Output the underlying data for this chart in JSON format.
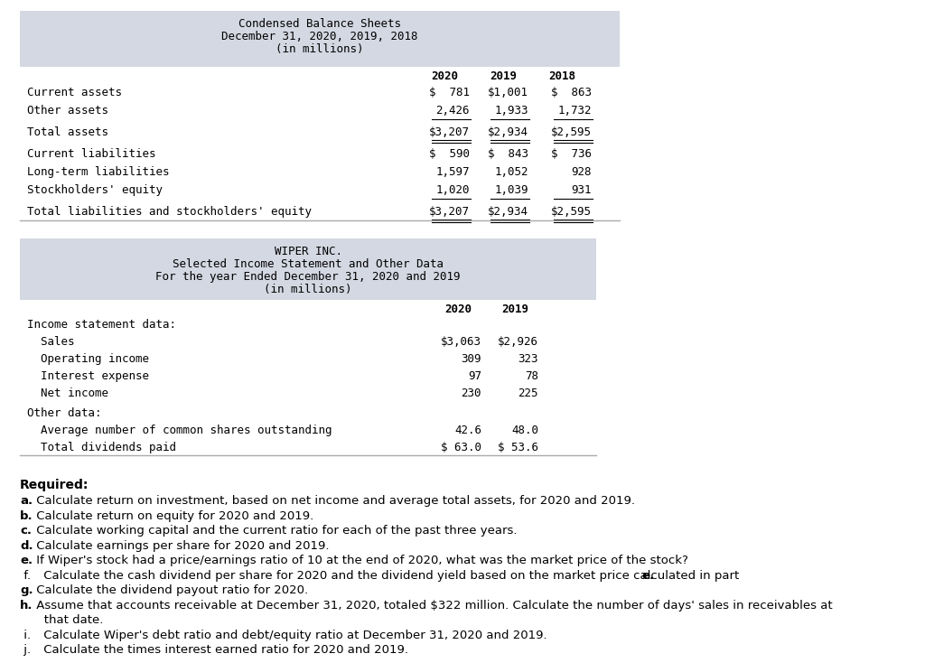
{
  "bg_color": "#ffffff",
  "table_bg": "#d4d8e2",
  "table1_title_lines": [
    "Condensed Balance Sheets",
    "December 31, 2020, 2019, 2018",
    "(in millions)"
  ],
  "table1_col_headers": [
    "2020",
    "2019",
    "2018"
  ],
  "table1_rows": [
    {
      "label": "Current assets",
      "vals": [
        "$  781",
        "$1,001",
        "$  863"
      ],
      "underline": false,
      "double_ul": false,
      "top_gap": false
    },
    {
      "label": "Other assets",
      "vals": [
        "2,426",
        "1,933",
        "1,732"
      ],
      "underline": true,
      "double_ul": false,
      "top_gap": false
    },
    {
      "label": "Total assets",
      "vals": [
        "$3,207",
        "$2,934",
        "$2,595"
      ],
      "underline": false,
      "double_ul": true,
      "top_gap": true
    },
    {
      "label": "Current liabilities",
      "vals": [
        "$  590",
        "$  843",
        "$  736"
      ],
      "underline": false,
      "double_ul": false,
      "top_gap": true
    },
    {
      "label": "Long-term liabilities",
      "vals": [
        "1,597",
        "1,052",
        "928"
      ],
      "underline": false,
      "double_ul": false,
      "top_gap": false
    },
    {
      "label": "Stockholders' equity",
      "vals": [
        "1,020",
        "1,039",
        "931"
      ],
      "underline": true,
      "double_ul": false,
      "top_gap": false
    },
    {
      "label": "Total liabilities and stockholders' equity",
      "vals": [
        "$3,207",
        "$2,934",
        "$2,595"
      ],
      "underline": false,
      "double_ul": true,
      "top_gap": true
    }
  ],
  "table2_title_lines": [
    "WIPER INC.",
    "Selected Income Statement and Other Data",
    "For the year Ended December 31, 2020 and 2019",
    "(in millions)"
  ],
  "table2_col_headers": [
    "2020",
    "2019"
  ],
  "table2_rows": [
    {
      "label": "Income statement data:",
      "vals": [
        "",
        ""
      ],
      "top_gap": false
    },
    {
      "label": "  Sales",
      "vals": [
        "$3,063",
        "$2,926"
      ],
      "top_gap": false
    },
    {
      "label": "  Operating income",
      "vals": [
        "309",
        "323"
      ],
      "top_gap": false
    },
    {
      "label": "  Interest expense",
      "vals": [
        "97",
        "78"
      ],
      "top_gap": false
    },
    {
      "label": "  Net income",
      "vals": [
        "230",
        "225"
      ],
      "top_gap": false
    },
    {
      "label": "Other data:",
      "vals": [
        "",
        ""
      ],
      "top_gap": true
    },
    {
      "label": "  Average number of common shares outstanding",
      "vals": [
        "42.6",
        "48.0"
      ],
      "top_gap": false
    },
    {
      "label": "  Total dividends paid",
      "vals": [
        "$ 63.0",
        "$ 53.6"
      ],
      "top_gap": false
    }
  ],
  "required_items": [
    {
      "letter": "a.",
      "bold_letter": true,
      "text": " Calculate return on investment, based on net income and average total assets, for 2020 and 2019."
    },
    {
      "letter": "b.",
      "bold_letter": true,
      "text": " Calculate return on equity for 2020 and 2019."
    },
    {
      "letter": "c.",
      "bold_letter": true,
      "text": " Calculate working capital and the current ratio for each of the past three years."
    },
    {
      "letter": "d.",
      "bold_letter": true,
      "text": " Calculate earnings per share for 2020 and 2019."
    },
    {
      "letter": "e.",
      "bold_letter": true,
      "text": " If Wiper's stock had a price/earnings ratio of 10 at the end of 2020, what was the market price of the stock?"
    },
    {
      "letter": " f.",
      "bold_letter": false,
      "text": " Calculate the cash dividend per share for 2020 and the dividend yield based on the market price calculated in part e.",
      "bold_e": true
    },
    {
      "letter": "g.",
      "bold_letter": true,
      "text": " Calculate the dividend payout ratio for 2020."
    },
    {
      "letter": "h.",
      "bold_letter": true,
      "text": " Assume that accounts receivable at December 31, 2020, totaled $322 million. Calculate the number of days' sales in receivables at",
      "continuation": "   that date."
    },
    {
      "letter": " i.",
      "bold_letter": false,
      "text": " Calculate Wiper's debt ratio and debt/equity ratio at December 31, 2020 and 2019."
    },
    {
      "letter": " j.",
      "bold_letter": false,
      "text": " Calculate the times interest earned ratio for 2020 and 2019."
    }
  ]
}
